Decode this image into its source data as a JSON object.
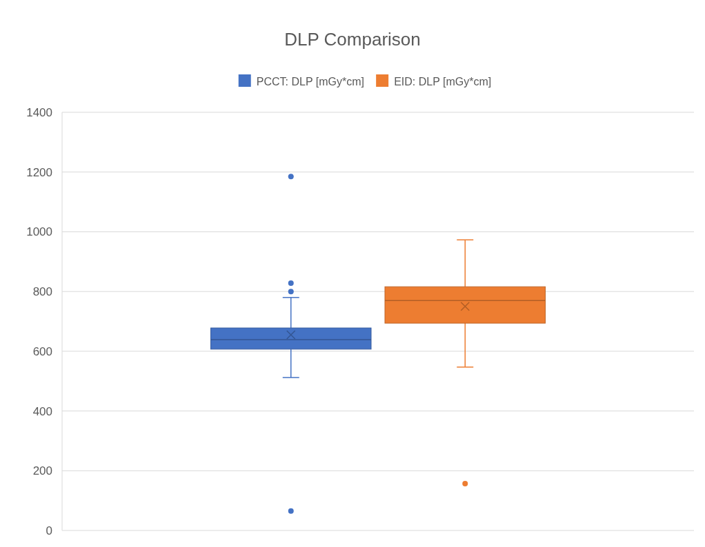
{
  "chart_data": {
    "type": "box",
    "title": "DLP Comparison",
    "categories": [
      null
    ],
    "series": [
      {
        "name": "PCCT: DLP [mGy*cm]",
        "color": "#4472c4",
        "boxes": [
          {
            "low": 512,
            "q1": 607,
            "median": 639,
            "q3": 678,
            "high": 780,
            "mean": 655,
            "outliers": [
              1185,
              828,
              800,
              65
            ]
          }
        ]
      },
      {
        "name": "EID: DLP [mGy*cm]",
        "color": "#ed7d31",
        "boxes": [
          {
            "low": 547,
            "q1": 694,
            "median": 770,
            "q3": 816,
            "high": 973,
            "mean": 750,
            "outliers": [
              157
            ]
          }
        ]
      }
    ],
    "ylim": [
      0,
      1400
    ],
    "yticks": [
      0,
      200,
      400,
      600,
      800,
      1000,
      1200,
      1400
    ],
    "grid": true,
    "legend": "top"
  }
}
